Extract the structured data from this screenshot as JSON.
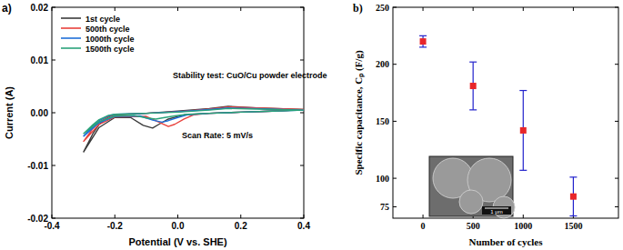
{
  "chart_data": [
    {
      "type": "line",
      "title": "a)",
      "xlabel": "Potential (V vs. SHE)",
      "ylabel": "Current (A)",
      "annotations": [
        "Stability test: CuO/Cu powder electrode",
        "Scan Rate: 5 mV/s"
      ],
      "xlim": [
        -0.4,
        0.4
      ],
      "xticks": [
        -0.4,
        -0.2,
        {
          "value": 0,
          "label": "0.0"
        },
        0.2,
        0.4
      ],
      "ylim": [
        -0.02,
        0.02
      ],
      "yticks": [
        -0.02,
        -0.01,
        {
          "value": 0,
          "label": "0.00"
        },
        0.01,
        0.02
      ],
      "grid": false,
      "legend": "upper-left",
      "series": [
        {
          "name": "1st cycle",
          "color": "#3a3a3a",
          "line_style": "solid",
          "x": [
            -0.3,
            -0.27,
            -0.25,
            -0.22,
            -0.2,
            -0.1,
            0,
            0.1,
            0.16,
            0.25,
            0.4,
            0.3,
            0.2,
            0.1,
            0.02,
            -0.03,
            -0.06,
            -0.08,
            -0.11,
            -0.15,
            -0.2,
            -0.25,
            -0.3
          ],
          "values": [
            -0.0075,
            -0.004,
            -0.0022,
            -0.0008,
            -0.0004,
            -0.0001,
            0.0003,
            0.0008,
            0.0012,
            0.0009,
            0.0006,
            0.0003,
            0.0001,
            -0.0001,
            -0.0004,
            -0.0012,
            -0.0022,
            -0.0029,
            -0.0024,
            -0.0009,
            -0.0009,
            -0.0028,
            -0.0075
          ]
        },
        {
          "name": "500th  cycle",
          "color": "#e8413c",
          "line_style": "solid",
          "x": [
            -0.3,
            -0.27,
            -0.25,
            -0.22,
            -0.2,
            -0.1,
            0,
            0.1,
            0.16,
            0.25,
            0.4,
            0.3,
            0.2,
            0.1,
            0.05,
            0.02,
            -0.01,
            -0.03,
            -0.06,
            -0.1,
            -0.2,
            -0.25,
            -0.3
          ],
          "values": [
            -0.0055,
            -0.003,
            -0.0018,
            -0.0007,
            -0.0004,
            -0.0001,
            0.0002,
            0.0007,
            0.0011,
            0.0009,
            0.0006,
            0.0003,
            0.0001,
            -0.0001,
            -0.0004,
            -0.0012,
            -0.0022,
            -0.0026,
            -0.0018,
            -0.0007,
            -0.0008,
            -0.0022,
            -0.0055
          ]
        },
        {
          "name": "1000th cycle",
          "color": "#1f6fd9",
          "line_style": "solid",
          "x": [
            -0.3,
            -0.27,
            -0.25,
            -0.22,
            -0.2,
            -0.1,
            0,
            0.1,
            0.16,
            0.25,
            0.4,
            0.3,
            0.2,
            0.1,
            0.03,
            0,
            -0.03,
            -0.05,
            -0.08,
            -0.12,
            -0.2,
            -0.25,
            -0.3
          ],
          "values": [
            -0.0045,
            -0.0026,
            -0.0015,
            -0.0006,
            -0.0003,
            -0.0001,
            0.0002,
            0.0006,
            0.0009,
            0.0008,
            0.0005,
            0.0003,
            0.0001,
            -0.0001,
            -0.0004,
            -0.0009,
            -0.0015,
            -0.0018,
            -0.0014,
            -0.0006,
            -0.0007,
            -0.0019,
            -0.0045
          ]
        },
        {
          "name": "1500th cycle",
          "color": "#2aa37a",
          "line_style": "solid",
          "x": [
            -0.3,
            -0.27,
            -0.25,
            -0.22,
            -0.2,
            -0.1,
            0,
            0.1,
            0.16,
            0.25,
            0.4,
            0.3,
            0.2,
            0.1,
            0.03,
            -0.01,
            -0.05,
            -0.07,
            -0.1,
            -0.14,
            -0.2,
            -0.25,
            -0.3
          ],
          "values": [
            -0.004,
            -0.0023,
            -0.0013,
            -0.0005,
            -0.0003,
            -0.0001,
            0.0001,
            0.0005,
            0.0008,
            0.0007,
            0.0005,
            0.0003,
            0.0001,
            -0.0001,
            -0.0003,
            -0.0006,
            -0.001,
            -0.0012,
            -0.001,
            -0.0005,
            -0.0006,
            -0.0017,
            -0.004
          ]
        }
      ]
    },
    {
      "type": "scatter",
      "title": "b)",
      "xlabel": "Number of cycles",
      "ylabel": "Specific capacitance, Cₚ (F/g)",
      "annotations": [
        "1 μm"
      ],
      "x": [
        0,
        500,
        1000,
        1500
      ],
      "values": [
        220,
        181,
        142,
        84
      ],
      "errors": [
        5,
        21,
        35,
        17
      ],
      "color": "#e8262a",
      "marker": "square",
      "xlim": [
        -300,
        1950
      ],
      "xticks": [
        0,
        500,
        1000,
        1500
      ],
      "ylim": [
        65,
        250
      ],
      "yticks": [
        75,
        100,
        150,
        200,
        250
      ],
      "grid": false
    }
  ]
}
